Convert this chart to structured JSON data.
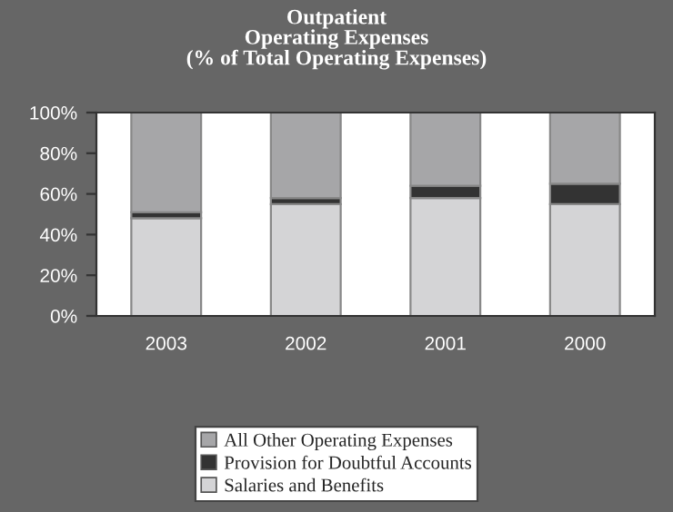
{
  "chart_data": {
    "type": "bar",
    "title": "Outpatient\nOperating Expenses\n(% of Total Operating Expenses)",
    "categories": [
      "2003",
      "2002",
      "2001",
      "2000"
    ],
    "stacked": true,
    "series": [
      {
        "name": "Salaries and Benefits",
        "color": "#d4d4d6",
        "values": [
          48,
          55,
          58,
          55
        ]
      },
      {
        "name": "Provision for Doubtful Accounts",
        "color": "#333333",
        "values": [
          3,
          3,
          6,
          10
        ]
      },
      {
        "name": "All Other Operating Expenses",
        "color": "#a6a6a8",
        "values": [
          49,
          42,
          36,
          35
        ]
      }
    ],
    "ylim": [
      0,
      100
    ],
    "yticks": [
      {
        "value": 0,
        "label": "0%"
      },
      {
        "value": 20,
        "label": "20%"
      },
      {
        "value": 40,
        "label": "40%"
      },
      {
        "value": 60,
        "label": "60%"
      },
      {
        "value": 80,
        "label": "80%"
      },
      {
        "value": 100,
        "label": "100%"
      }
    ],
    "grid": false,
    "legend": "bottom"
  }
}
